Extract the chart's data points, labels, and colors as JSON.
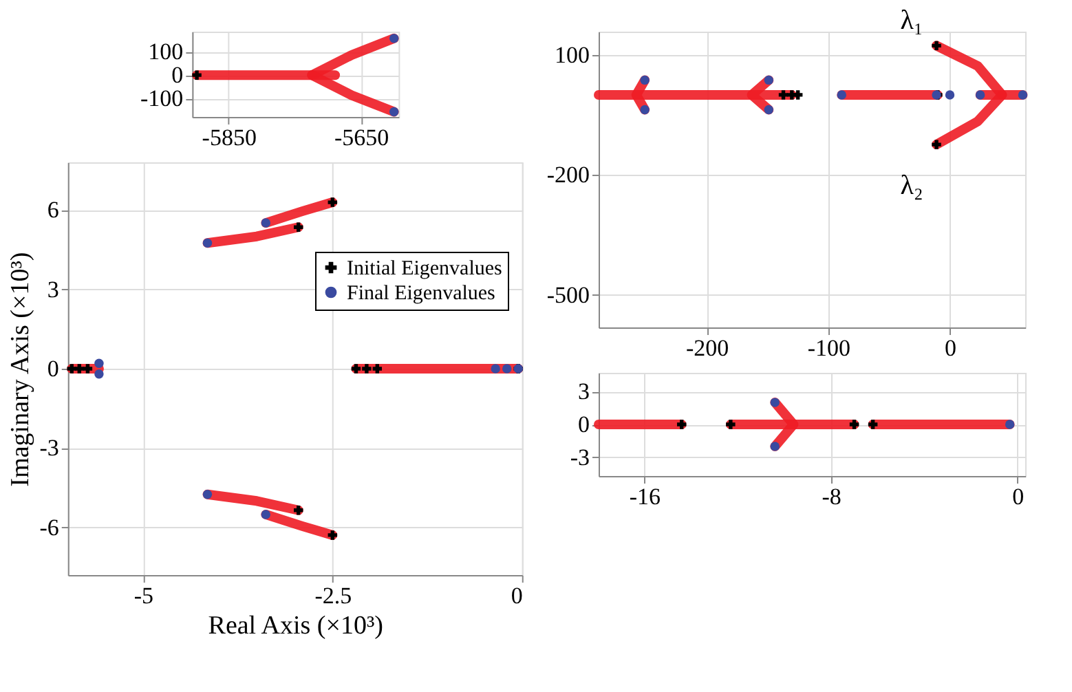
{
  "chart_data": [
    {
      "type": "line",
      "xlim": [
        -5905,
        -5593
      ],
      "ylim": [
        -179,
        186
      ],
      "xticks": [
        -5850,
        -5650
      ],
      "yticks": [
        -100,
        0,
        100
      ],
      "grid": true,
      "series": [
        {
          "type": "line",
          "color": "#ee1c25",
          "x": [
            -5898,
            -5689
          ],
          "values": [
            0,
            0
          ]
        },
        {
          "type": "line",
          "color": "#ee1c25",
          "x": [
            -5724,
            -5664,
            -5600
          ],
          "values": [
            0,
            86,
            157
          ]
        },
        {
          "type": "line",
          "color": "#ee1c25",
          "x": [
            -5724,
            -5664,
            -5600
          ],
          "values": [
            0,
            -86,
            -157
          ]
        },
        {
          "type": "scatter",
          "marker": "cross",
          "color": "#000000",
          "x": [
            -5898
          ],
          "values": [
            0
          ]
        },
        {
          "type": "scatter",
          "marker": "circle",
          "color": "#3a4aa0",
          "x": [
            -5600,
            -5600
          ],
          "values": [
            157,
            -157
          ]
        }
      ]
    },
    {
      "type": "line",
      "xlabel": "Real Axis (×10³)",
      "ylabel": "Imaginary Axis (×10³)",
      "xlim": [
        -5.99,
        0
      ],
      "ylim": [
        -7.8,
        7.8
      ],
      "xticks": [
        -5,
        -2.5,
        0
      ],
      "yticks": [
        -6,
        -3,
        0,
        3,
        6
      ],
      "grid": true,
      "legend": "right",
      "series": [
        {
          "type": "line",
          "color": "#ee1c25",
          "x": [
            -2.5,
            -2.9,
            -3.38
          ],
          "values": [
            6.29,
            5.95,
            5.51
          ]
        },
        {
          "type": "line",
          "color": "#ee1c25",
          "x": [
            -2.95,
            -3.5,
            -4.15
          ],
          "values": [
            5.35,
            5.0,
            4.75
          ]
        },
        {
          "type": "line",
          "color": "#ee1c25",
          "x": [
            -2.5,
            -2.9,
            -3.38
          ],
          "values": [
            -6.29,
            -5.95,
            -5.51
          ]
        },
        {
          "type": "line",
          "color": "#ee1c25",
          "x": [
            -2.95,
            -3.5,
            -4.15
          ],
          "values": [
            -5.35,
            -5.0,
            -4.75
          ]
        },
        {
          "type": "line",
          "color": "#ee1c25",
          "x": [
            -5.94,
            -5.58
          ],
          "values": [
            0,
            0
          ]
        },
        {
          "color": "#ee1c25",
          "x": [
            -2.19,
            -0.05
          ],
          "values": [
            0,
            0
          ]
        },
        {
          "type": "scatter",
          "marker": "cross",
          "color": "#000000",
          "name": "Initial Eigenvalues",
          "x": [
            -2.5,
            -2.95,
            -2.5,
            -2.95,
            -5.94,
            -5.84,
            -5.73,
            -2.19,
            -2.05,
            -1.91,
            -0.05
          ],
          "values": [
            6.29,
            5.35,
            -6.29,
            -5.35,
            0,
            0,
            0,
            0,
            0,
            0,
            0
          ]
        },
        {
          "type": "scatter",
          "marker": "circle",
          "color": "#3a4aa0",
          "name": "Final Eigenvalues",
          "x": [
            -3.38,
            -4.15,
            -3.38,
            -4.15,
            -5.58,
            -5.58,
            -0.35,
            -0.2,
            -0.05
          ],
          "values": [
            5.51,
            4.75,
            -5.51,
            -4.75,
            0.2,
            -0.2,
            0,
            0,
            0
          ]
        }
      ]
    },
    {
      "type": "line",
      "xlim": [
        -289,
        62
      ],
      "ylim": [
        -581,
        158
      ],
      "xticks": [
        -200,
        -100,
        0
      ],
      "yticks": [
        -500,
        -200,
        100
      ],
      "grid": true,
      "annotations": [
        {
          "text": "λ₁",
          "x": -11,
          "y": 123
        },
        {
          "text": "λ₂",
          "x": -11,
          "y": -124
        }
      ],
      "series": [
        {
          "type": "line",
          "color": "#ee1c25",
          "x": [
            -289,
            -130
          ],
          "values": [
            0,
            0
          ]
        },
        {
          "type": "line",
          "color": "#ee1c25",
          "x": [
            -251,
            -258,
            -251
          ],
          "values": [
            37,
            0,
            -37
          ]
        },
        {
          "type": "line",
          "color": "#ee1c25",
          "x": [
            -149,
            -163,
            -149
          ],
          "values": [
            37,
            0,
            -37
          ]
        },
        {
          "type": "line",
          "color": "#ee1c25",
          "x": [
            -89,
            -10
          ],
          "values": [
            0,
            0
          ]
        },
        {
          "type": "line",
          "color": "#ee1c25",
          "x": [
            -11,
            23,
            43
          ],
          "values": [
            123,
            72,
            0
          ]
        },
        {
          "type": "line",
          "color": "#ee1c25",
          "x": [
            43,
            23,
            -11
          ],
          "values": [
            0,
            -66,
            -124
          ]
        },
        {
          "type": "line",
          "color": "#ee1c25",
          "x": [
            25,
            60
          ],
          "values": [
            0,
            0
          ]
        },
        {
          "type": "scatter",
          "marker": "cross",
          "color": "#000000",
          "x": [
            -137,
            -130,
            -125,
            -10,
            -11,
            -11
          ],
          "values": [
            0,
            0,
            0,
            0,
            123,
            -124
          ]
        },
        {
          "type": "scatter",
          "marker": "circle",
          "color": "#3a4aa0",
          "x": [
            -251,
            -251,
            -149,
            -149,
            -89,
            -11,
            0,
            25,
            60
          ],
          "values": [
            37,
            -37,
            37,
            -37,
            0,
            0,
            0,
            0,
            0
          ]
        }
      ]
    },
    {
      "type": "line",
      "xlim": [
        -17.96,
        0.33
      ],
      "ylim": [
        -4.7,
        4.7
      ],
      "xticks": [
        -16,
        -8,
        0
      ],
      "yticks": [
        -3,
        0,
        3
      ],
      "grid": true,
      "series": [
        {
          "type": "line",
          "color": "#ee1c25",
          "x": [
            -17.96,
            -14.4
          ],
          "values": [
            0,
            0
          ]
        },
        {
          "type": "line",
          "color": "#ee1c25",
          "x": [
            -12.3,
            -7.0
          ],
          "values": [
            0,
            0
          ]
        },
        {
          "type": "line",
          "color": "#ee1c25",
          "x": [
            -10.4,
            -9.6,
            -10.4
          ],
          "values": [
            2,
            0,
            -2
          ]
        },
        {
          "type": "line",
          "color": "#ee1c25",
          "x": [
            -6.2,
            -0.33
          ],
          "values": [
            0,
            0
          ]
        },
        {
          "type": "scatter",
          "marker": "cross",
          "color": "#000000",
          "x": [
            -14.4,
            -12.3,
            -7.0,
            -6.2
          ],
          "values": [
            0,
            0,
            0,
            0
          ]
        },
        {
          "type": "scatter",
          "marker": "circle",
          "color": "#3a4aa0",
          "x": [
            -10.4,
            -10.4,
            -0.33
          ],
          "values": [
            2,
            -2,
            0
          ]
        }
      ]
    }
  ]
}
